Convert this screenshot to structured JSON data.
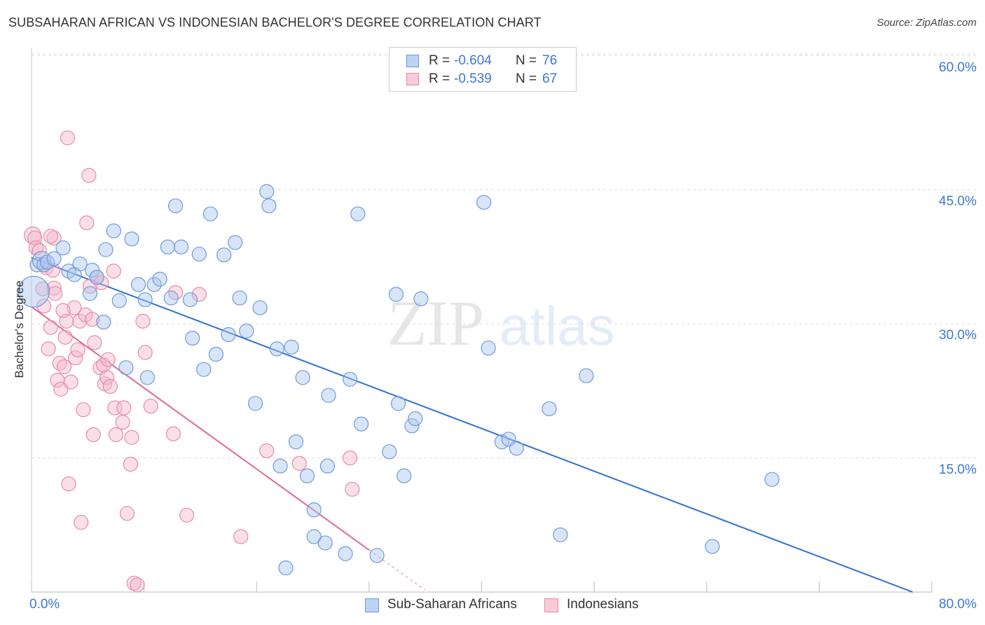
{
  "title": "SUBSAHARAN AFRICAN VS INDONESIAN BACHELOR'S DEGREE CORRELATION CHART",
  "source": "Source: ZipAtlas.com",
  "watermark": {
    "zip": "ZIP",
    "atlas": "atlas"
  },
  "colors": {
    "blue_fill": "#a9c6ef",
    "blue_stroke": "#6f9ad6",
    "blue_line": "#2f6fd0",
    "pink_fill": "#f5b7ca",
    "pink_stroke": "#e88aa8",
    "pink_line": "#e0699a",
    "grid": "#dddddd",
    "axis_text": "#3b78d4"
  },
  "legend": {
    "blue": {
      "r_label": "R =",
      "r_value": "-0.604",
      "n_label": "N =",
      "n_value": "76"
    },
    "pink": {
      "r_label": "R =",
      "r_value": "-0.539",
      "n_label": "N =",
      "n_value": "67"
    }
  },
  "bottom_legend": {
    "blue_label": "Sub-Saharan Africans",
    "pink_label": "Indonesians"
  },
  "chart_data": {
    "type": "scatter",
    "title": "SUBSAHARAN AFRICAN VS INDONESIAN BACHELOR'S DEGREE CORRELATION CHART",
    "xlabel": "",
    "ylabel": "Bachelor's Degree",
    "xlim": [
      0,
      80
    ],
    "ylim": [
      0,
      64
    ],
    "x_tick_labels": {
      "min": "0.0%",
      "max": "80.0%"
    },
    "y_ticks": [
      15,
      30,
      45,
      60
    ],
    "y_tick_labels": [
      "15.0%",
      "30.0%",
      "45.0%",
      "60.0%"
    ],
    "grid": true,
    "legend_position": "top-center",
    "series": [
      {
        "name": "Sub-Saharan Africans",
        "color": "#a9c6ef",
        "r": -0.604,
        "n": 76,
        "trend": {
          "x": [
            0,
            78.3
          ],
          "y": [
            37.4,
            0
          ]
        },
        "points": [
          [
            0.2,
            33.6,
            22
          ],
          [
            0.5,
            36.6,
            10
          ],
          [
            0.9,
            37.1,
            13
          ],
          [
            1.1,
            36.6,
            10
          ],
          [
            1.4,
            36.9,
            10
          ],
          [
            2.0,
            37.3,
            10
          ],
          [
            2.8,
            38.5,
            10
          ],
          [
            3.3,
            35.9,
            10
          ],
          [
            4.3,
            36.7,
            10
          ],
          [
            3.8,
            35.5,
            10
          ],
          [
            5.2,
            33.4,
            10
          ],
          [
            5.4,
            36.0,
            10
          ],
          [
            5.8,
            35.2,
            10
          ],
          [
            6.4,
            30.2,
            10
          ],
          [
            6.6,
            38.3,
            10
          ],
          [
            7.3,
            40.4,
            10
          ],
          [
            7.8,
            32.6,
            10
          ],
          [
            8.4,
            25.1,
            10
          ],
          [
            8.9,
            39.5,
            10
          ],
          [
            9.5,
            34.4,
            10
          ],
          [
            10.1,
            32.7,
            10
          ],
          [
            10.3,
            24.0,
            10
          ],
          [
            10.9,
            34.4,
            10
          ],
          [
            11.4,
            35.0,
            10
          ],
          [
            12.1,
            38.6,
            10
          ],
          [
            12.4,
            32.9,
            10
          ],
          [
            12.8,
            43.2,
            10
          ],
          [
            13.3,
            38.6,
            10
          ],
          [
            14.1,
            32.7,
            10
          ],
          [
            14.3,
            28.4,
            10
          ],
          [
            14.9,
            37.8,
            10
          ],
          [
            15.3,
            24.9,
            10
          ],
          [
            15.9,
            42.3,
            10
          ],
          [
            16.4,
            26.6,
            10
          ],
          [
            17.1,
            37.7,
            10
          ],
          [
            17.5,
            28.8,
            10
          ],
          [
            18.1,
            39.1,
            10
          ],
          [
            18.5,
            32.9,
            10
          ],
          [
            19.1,
            29.2,
            10
          ],
          [
            19.9,
            21.1,
            10
          ],
          [
            20.3,
            31.8,
            10
          ],
          [
            20.9,
            44.8,
            10
          ],
          [
            21.1,
            43.2,
            10
          ],
          [
            21.8,
            27.2,
            10
          ],
          [
            22.1,
            14.1,
            10
          ],
          [
            22.6,
            2.7,
            10
          ],
          [
            23.1,
            27.4,
            10
          ],
          [
            23.5,
            16.8,
            10
          ],
          [
            24.1,
            24.0,
            10
          ],
          [
            24.5,
            13.0,
            10
          ],
          [
            25.1,
            9.2,
            10
          ],
          [
            25.1,
            6.2,
            10
          ],
          [
            26.1,
            5.5,
            10
          ],
          [
            26.3,
            14.1,
            10
          ],
          [
            26.4,
            22.0,
            10
          ],
          [
            27.9,
            4.3,
            10
          ],
          [
            28.3,
            23.8,
            10
          ],
          [
            29.0,
            42.3,
            10
          ],
          [
            29.3,
            18.8,
            10
          ],
          [
            30.7,
            4.1,
            10
          ],
          [
            31.8,
            15.7,
            10
          ],
          [
            32.4,
            33.3,
            10
          ],
          [
            32.6,
            21.1,
            10
          ],
          [
            33.1,
            13.0,
            10
          ],
          [
            33.8,
            18.6,
            10
          ],
          [
            34.1,
            19.4,
            10
          ],
          [
            34.6,
            32.8,
            10
          ],
          [
            40.2,
            43.6,
            10
          ],
          [
            40.6,
            27.3,
            10
          ],
          [
            41.8,
            16.8,
            10
          ],
          [
            42.4,
            17.1,
            10
          ],
          [
            43.1,
            16.1,
            10
          ],
          [
            46.0,
            20.5,
            10
          ],
          [
            47.0,
            6.4,
            10
          ],
          [
            49.3,
            24.2,
            10
          ],
          [
            60.5,
            5.1,
            10
          ],
          [
            65.8,
            12.6,
            10
          ]
        ]
      },
      {
        "name": "Indonesians",
        "color": "#f5b7ca",
        "r": -0.539,
        "n": 67,
        "trend": {
          "x": [
            0,
            30
          ],
          "y": [
            31.9,
            4.7
          ]
        },
        "trend_dashed": {
          "x": [
            30,
            35
          ],
          "y": [
            4.7,
            0.2
          ]
        },
        "points": [
          [
            0.1,
            39.9,
            12
          ],
          [
            0.3,
            39.6,
            10
          ],
          [
            0.4,
            38.5,
            10
          ],
          [
            0.7,
            38.2,
            10
          ],
          [
            1.0,
            33.9,
            10
          ],
          [
            1.1,
            32.0,
            10
          ],
          [
            1.3,
            36.3,
            10
          ],
          [
            1.5,
            27.2,
            10
          ],
          [
            1.7,
            29.6,
            10
          ],
          [
            1.9,
            36.0,
            10
          ],
          [
            2.0,
            39.6,
            10
          ],
          [
            2.0,
            34.0,
            10
          ],
          [
            2.1,
            33.4,
            10
          ],
          [
            2.3,
            23.7,
            10
          ],
          [
            2.5,
            25.6,
            10
          ],
          [
            2.6,
            22.7,
            10
          ],
          [
            2.9,
            25.2,
            10
          ],
          [
            3.0,
            28.5,
            10
          ],
          [
            3.1,
            30.3,
            10
          ],
          [
            3.2,
            50.8,
            10
          ],
          [
            3.3,
            12.1,
            10
          ],
          [
            3.5,
            23.5,
            10
          ],
          [
            3.8,
            31.8,
            10
          ],
          [
            3.9,
            26.2,
            10
          ],
          [
            4.1,
            27.1,
            10
          ],
          [
            4.3,
            30.3,
            10
          ],
          [
            4.4,
            7.8,
            10
          ],
          [
            4.6,
            20.4,
            10
          ],
          [
            4.8,
            31.0,
            10
          ],
          [
            4.9,
            41.3,
            10
          ],
          [
            5.1,
            46.6,
            10
          ],
          [
            5.2,
            34.2,
            10
          ],
          [
            5.4,
            30.5,
            10
          ],
          [
            5.5,
            17.6,
            10
          ],
          [
            5.6,
            27.9,
            10
          ],
          [
            5.8,
            35.2,
            10
          ],
          [
            6.1,
            25.1,
            10
          ],
          [
            6.2,
            34.6,
            10
          ],
          [
            6.4,
            25.4,
            10
          ],
          [
            6.5,
            23.3,
            10
          ],
          [
            6.7,
            24.0,
            10
          ],
          [
            6.8,
            26.0,
            10
          ],
          [
            7.0,
            23.0,
            10
          ],
          [
            7.3,
            35.9,
            10
          ],
          [
            7.4,
            20.6,
            10
          ],
          [
            7.5,
            17.6,
            10
          ],
          [
            8.1,
            19.0,
            10
          ],
          [
            8.2,
            20.6,
            10
          ],
          [
            8.5,
            8.8,
            10
          ],
          [
            8.8,
            14.3,
            10
          ],
          [
            8.9,
            17.3,
            10
          ],
          [
            9.1,
            1.0,
            10
          ],
          [
            9.4,
            0.8,
            10
          ],
          [
            9.9,
            30.3,
            10
          ],
          [
            10.1,
            26.8,
            10
          ],
          [
            10.6,
            20.8,
            10
          ],
          [
            12.6,
            17.7,
            10
          ],
          [
            12.8,
            33.5,
            10
          ],
          [
            13.8,
            8.6,
            10
          ],
          [
            14.9,
            33.3,
            10
          ],
          [
            18.6,
            6.2,
            10
          ],
          [
            20.9,
            15.8,
            10
          ],
          [
            23.8,
            14.4,
            10
          ],
          [
            28.3,
            15.0,
            10
          ],
          [
            28.5,
            11.5,
            10
          ],
          [
            1.7,
            39.8,
            10
          ],
          [
            2.8,
            31.5,
            10
          ]
        ]
      }
    ]
  }
}
